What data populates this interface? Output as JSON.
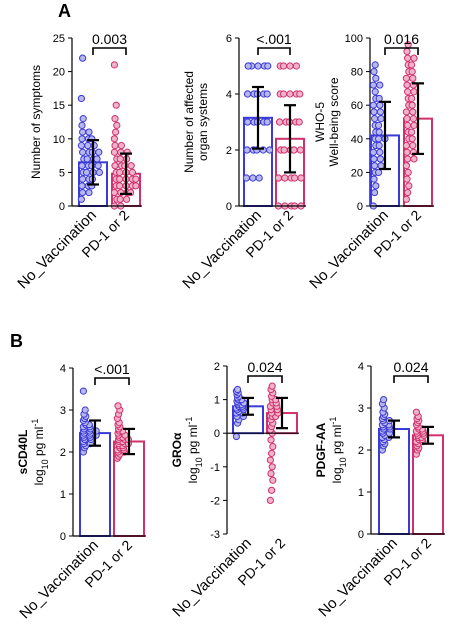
{
  "panel_labels": [
    "A",
    "B"
  ],
  "colors": {
    "vacc": "#3a3ad8",
    "pd": "#d0306e",
    "vacc_fill": "#b8b8ec",
    "pd_fill": "#f0b3c9",
    "error": "#000000"
  },
  "chart_data": [
    {
      "type": "bar",
      "panel": "A",
      "categories": [
        "No_Vaccination",
        "PD-1 or 2"
      ],
      "ylabel": [
        "Number of symptoms"
      ],
      "ylim": [
        0,
        25
      ],
      "yticks": [
        0,
        5,
        10,
        15,
        20,
        25
      ],
      "values": [
        6.5,
        4.8
      ],
      "err": [
        3.3,
        3.0
      ],
      "points": [
        [
          1,
          2,
          2,
          3,
          3,
          3,
          4,
          4,
          4,
          5,
          5,
          5,
          5,
          6,
          6,
          6,
          6,
          7,
          7,
          7,
          7,
          8,
          8,
          8,
          8,
          9,
          9,
          9,
          10,
          10,
          10,
          11,
          11,
          12,
          13,
          16,
          22
        ],
        [
          0,
          0,
          1,
          1,
          1,
          2,
          2,
          2,
          2,
          3,
          3,
          3,
          3,
          3,
          4,
          4,
          4,
          4,
          4,
          5,
          5,
          5,
          5,
          6,
          6,
          6,
          6,
          7,
          7,
          7,
          8,
          8,
          8,
          9,
          9,
          10,
          11,
          12,
          13,
          15,
          21
        ]
      ],
      "p_value": "0.003"
    },
    {
      "type": "bar",
      "panel": "A",
      "categories": [
        "No_Vaccination",
        "PD-1 or 2"
      ],
      "ylabel": [
        "Number of affected",
        "organ systems"
      ],
      "ylim": [
        0,
        6
      ],
      "yticks": [
        0,
        2,
        4,
        6
      ],
      "values": [
        3.15,
        2.4
      ],
      "err": [
        1.1,
        1.2
      ],
      "points": [
        [
          1,
          1,
          1,
          2,
          2,
          2,
          2,
          2,
          2,
          2,
          2,
          3,
          3,
          3,
          3,
          3,
          3,
          3,
          3,
          3,
          3,
          4,
          4,
          4,
          4,
          4,
          4,
          4,
          4,
          5,
          5,
          5,
          5,
          5,
          5
        ],
        [
          0,
          0,
          0,
          0,
          0,
          1,
          1,
          1,
          1,
          1,
          1,
          1,
          2,
          2,
          2,
          2,
          2,
          2,
          2,
          2,
          2,
          3,
          3,
          3,
          3,
          3,
          3,
          3,
          3,
          4,
          4,
          4,
          4,
          4,
          5,
          5,
          5,
          5
        ]
      ],
      "p_value": "<.001"
    },
    {
      "type": "bar",
      "panel": "A",
      "categories": [
        "No_Vaccination",
        "PD-1 or 2"
      ],
      "ylabel": [
        "WHO-5",
        "Well-being score"
      ],
      "ylim": [
        0,
        100
      ],
      "yticks": [
        0,
        20,
        40,
        60,
        80,
        100
      ],
      "values": [
        42,
        52
      ],
      "err": [
        20,
        21
      ],
      "points": [
        [
          0,
          8,
          12,
          16,
          20,
          20,
          24,
          24,
          28,
          28,
          32,
          32,
          36,
          36,
          40,
          40,
          40,
          44,
          44,
          48,
          48,
          52,
          52,
          56,
          56,
          60,
          60,
          64,
          64,
          68,
          72,
          72,
          76,
          80,
          84
        ],
        [
          4,
          8,
          12,
          16,
          20,
          24,
          28,
          28,
          32,
          32,
          36,
          36,
          40,
          40,
          44,
          44,
          48,
          48,
          52,
          52,
          56,
          56,
          60,
          60,
          64,
          64,
          68,
          68,
          72,
          72,
          76,
          76,
          80,
          80,
          84,
          84,
          88,
          88,
          92,
          96
        ]
      ],
      "p_value": "0.016"
    },
    {
      "type": "bar",
      "panel": "B",
      "categories": [
        "No_Vaccination",
        "PD-1 or 2"
      ],
      "ylabel_bold": "sCD40L",
      "ylabel": "log10 pg ml-1",
      "ylim": [
        0,
        4
      ],
      "yticks": [
        0,
        1,
        2,
        3,
        4
      ],
      "values": [
        2.45,
        2.25
      ],
      "err": [
        0.3,
        0.3
      ],
      "points": [
        [
          2.0,
          2.1,
          2.15,
          2.2,
          2.2,
          2.25,
          2.3,
          2.3,
          2.35,
          2.35,
          2.4,
          2.4,
          2.4,
          2.45,
          2.45,
          2.5,
          2.5,
          2.5,
          2.55,
          2.55,
          2.6,
          2.6,
          2.65,
          2.65,
          2.7,
          2.75,
          2.8,
          2.85,
          2.9,
          3.0,
          3.45
        ],
        [
          1.85,
          1.9,
          1.95,
          2.0,
          2.0,
          2.05,
          2.05,
          2.1,
          2.1,
          2.15,
          2.15,
          2.2,
          2.2,
          2.2,
          2.25,
          2.25,
          2.3,
          2.3,
          2.3,
          2.35,
          2.35,
          2.4,
          2.4,
          2.45,
          2.5,
          2.5,
          2.55,
          2.6,
          2.65,
          2.7,
          2.8,
          2.9,
          3.0,
          3.1
        ]
      ],
      "p_value": "<.001"
    },
    {
      "type": "bar",
      "panel": "B",
      "categories": [
        "No_Vaccination",
        "PD-1 or 2"
      ],
      "ylabel_bold": "GROα",
      "ylabel": "log10 pg ml-1",
      "ylim": [
        -3,
        2
      ],
      "yticks": [
        -3,
        -2,
        -1,
        0,
        1,
        2
      ],
      "values": [
        0.8,
        0.6
      ],
      "err": [
        0.25,
        0.45
      ],
      "points": [
        [
          -0.1,
          0.3,
          0.4,
          0.5,
          0.5,
          0.6,
          0.6,
          0.65,
          0.7,
          0.7,
          0.75,
          0.75,
          0.8,
          0.8,
          0.85,
          0.85,
          0.9,
          0.9,
          0.95,
          1.0,
          1.0,
          1.05,
          1.1,
          1.15,
          1.2,
          1.25,
          1.3
        ],
        [
          -2.0,
          -1.7,
          -1.4,
          -1.2,
          -1.0,
          -0.8,
          -0.6,
          -0.4,
          -0.2,
          0.0,
          0.1,
          0.2,
          0.3,
          0.4,
          0.5,
          0.5,
          0.6,
          0.6,
          0.7,
          0.7,
          0.8,
          0.8,
          0.9,
          0.9,
          1.0,
          1.0,
          1.1,
          1.2,
          1.3,
          1.4
        ]
      ],
      "p_value": "0.024"
    },
    {
      "type": "bar",
      "panel": "B",
      "categories": [
        "No_Vaccination",
        "PD-1 or 2"
      ],
      "ylabel_bold": "PDGF-AA",
      "ylabel": "log10 pg ml-1",
      "ylim": [
        0,
        4
      ],
      "yticks": [
        0,
        1,
        2,
        3,
        4
      ],
      "values": [
        2.5,
        2.35
      ],
      "err": [
        0.2,
        0.2
      ],
      "points": [
        [
          2.0,
          2.1,
          2.15,
          2.2,
          2.25,
          2.3,
          2.3,
          2.35,
          2.4,
          2.4,
          2.45,
          2.5,
          2.5,
          2.55,
          2.55,
          2.6,
          2.6,
          2.65,
          2.7,
          2.7,
          2.75,
          2.8,
          2.85,
          2.9,
          3.0,
          3.1,
          3.2
        ],
        [
          1.9,
          2.0,
          2.05,
          2.1,
          2.15,
          2.2,
          2.2,
          2.25,
          2.25,
          2.3,
          2.3,
          2.35,
          2.35,
          2.4,
          2.4,
          2.45,
          2.45,
          2.5,
          2.5,
          2.55,
          2.6,
          2.65,
          2.7,
          2.75,
          2.8,
          2.9
        ]
      ],
      "p_value": "0.024"
    }
  ]
}
